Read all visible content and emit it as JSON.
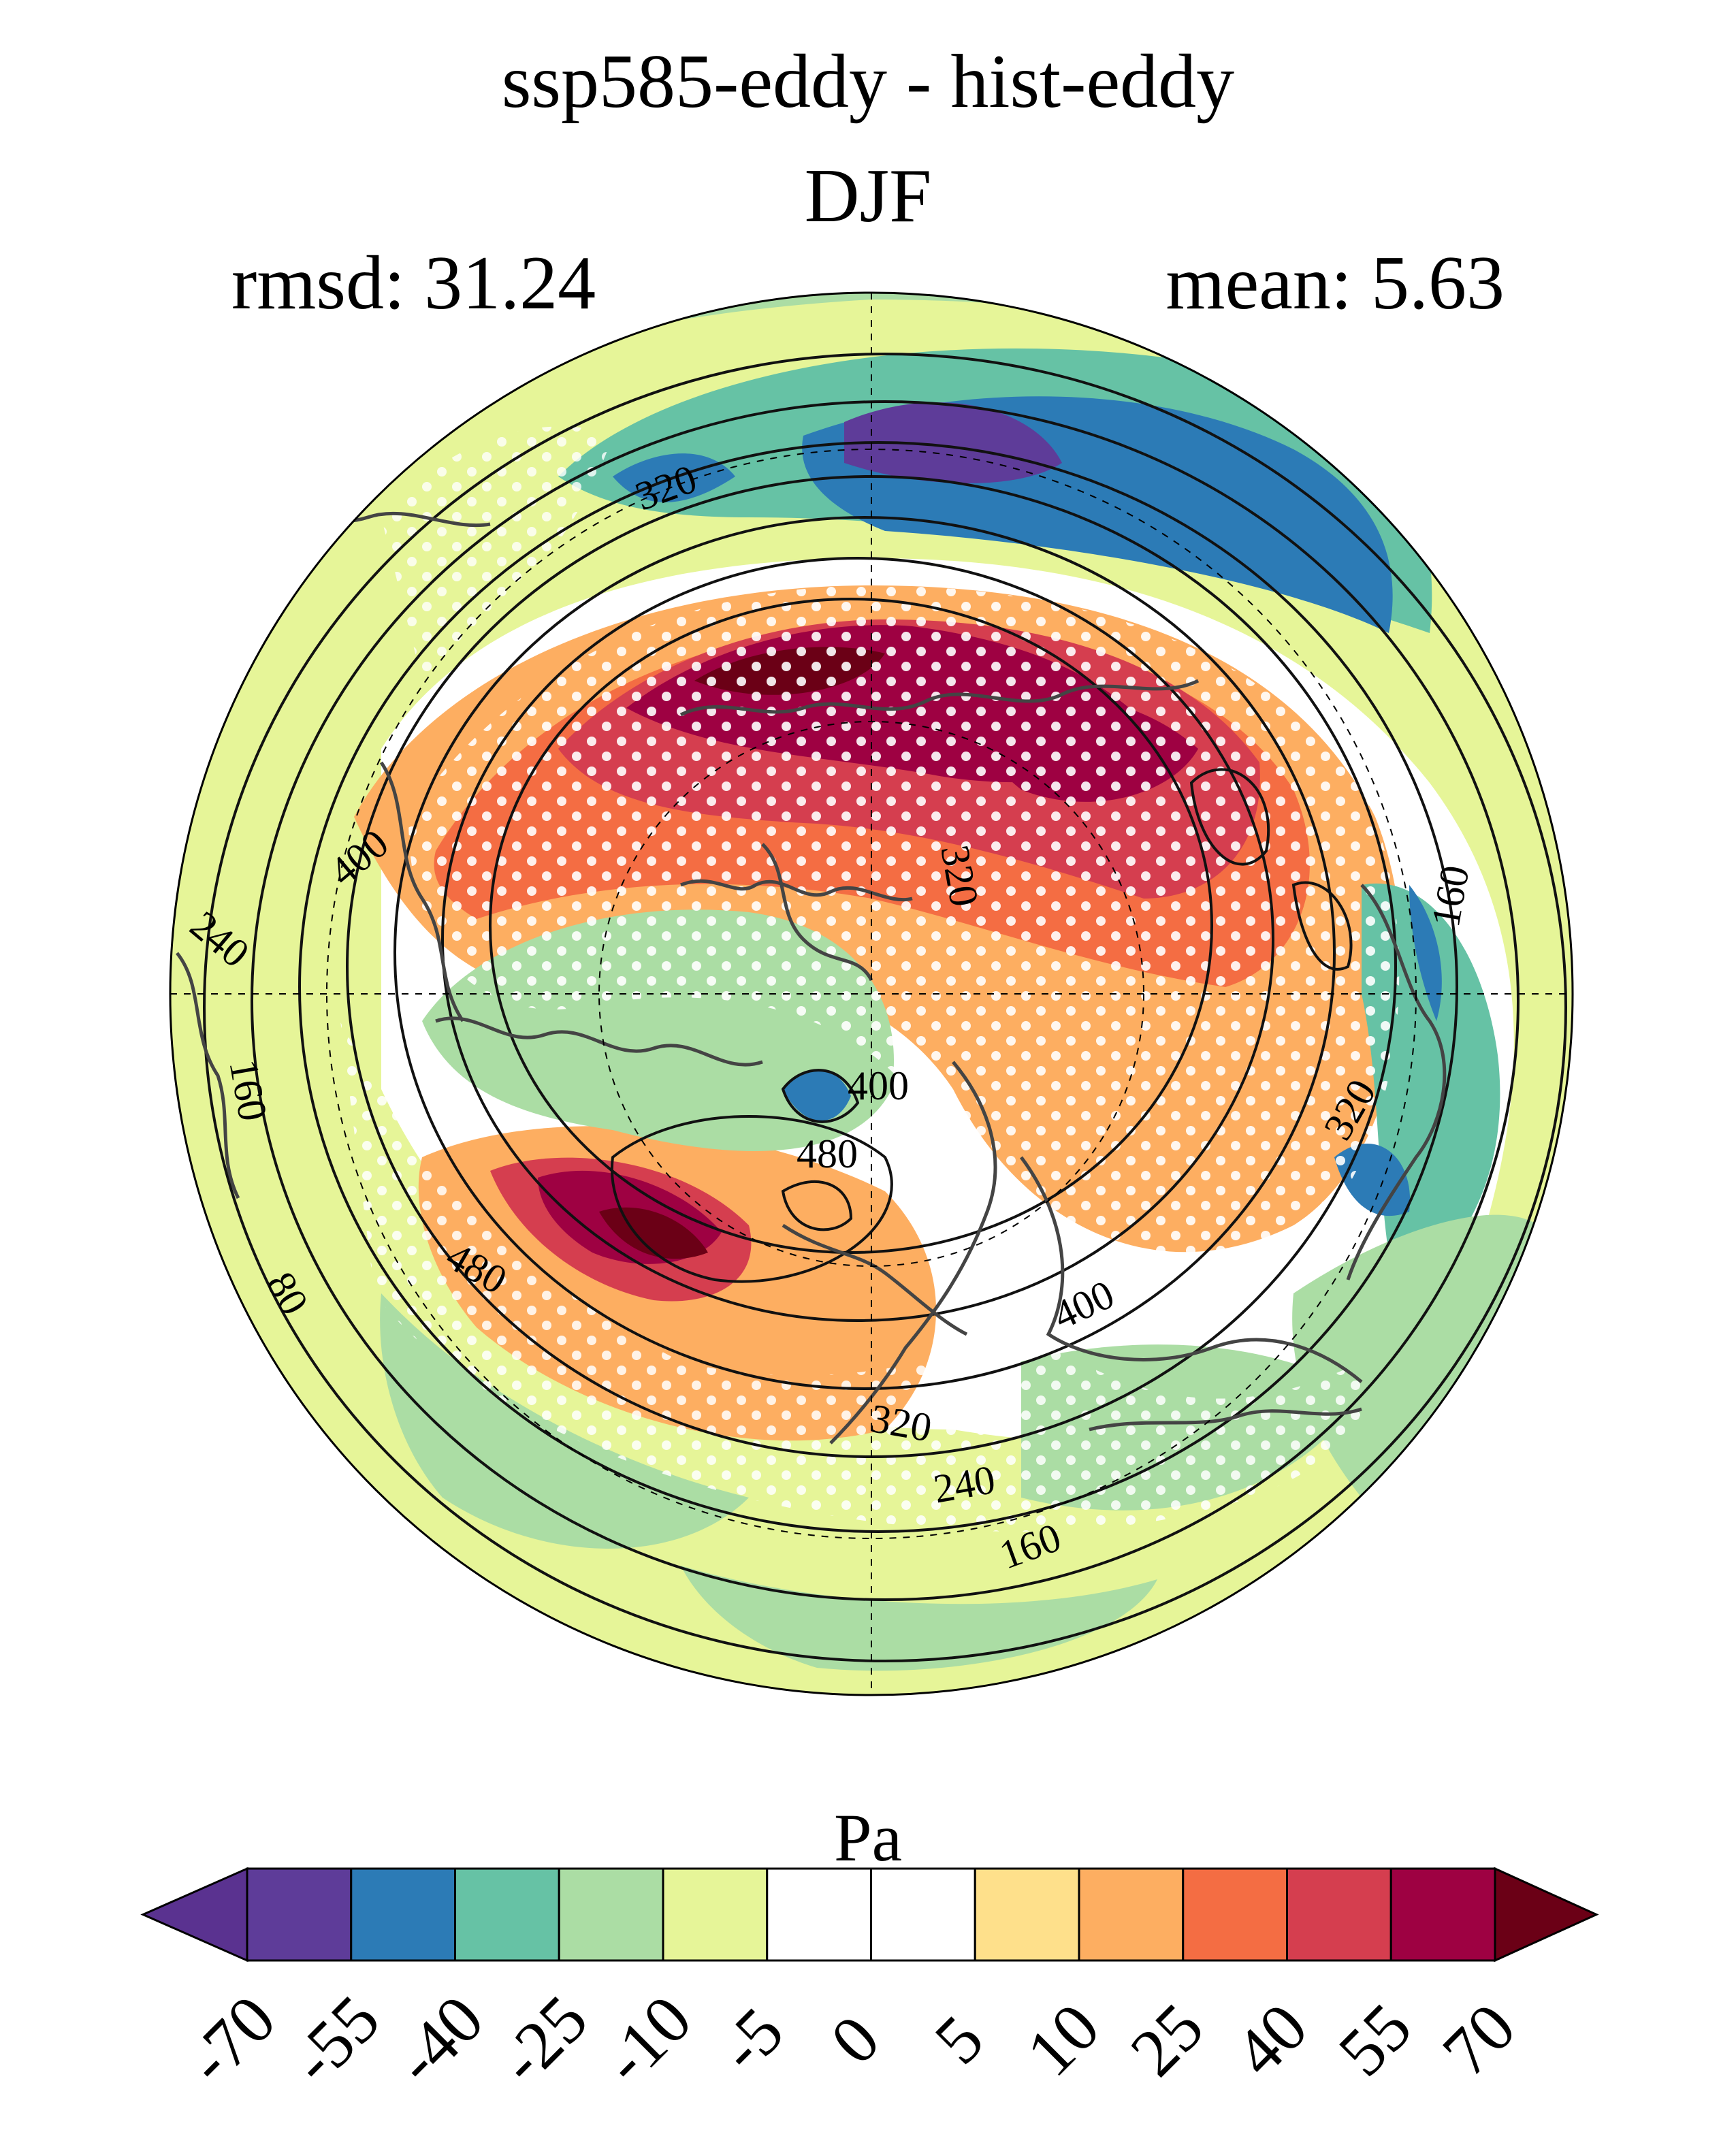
{
  "header": {
    "title": "ssp585-eddy - hist-eddy",
    "subtitle": "DJF",
    "rmsd": "rmsd: 31.24",
    "mean": "mean: 5.63"
  },
  "map": {
    "projection": "north-polar-stereographic",
    "contour_labels": [
      "320",
      "400",
      "240",
      "160",
      "80",
      "480",
      "400",
      "480",
      "320",
      "400",
      "320",
      "240",
      "160",
      "160",
      "320"
    ],
    "stippling": "white dots"
  },
  "colorbar": {
    "unit": "Pa",
    "ticks": [
      "-70",
      "-55",
      "-40",
      "-25",
      "-10",
      "-5",
      "0",
      "5",
      "10",
      "25",
      "40",
      "55",
      "70"
    ],
    "colors": [
      "#5e3c99",
      "#2c7bb6",
      "#66c2a5",
      "#abdda4",
      "#e6f598",
      "#ffffff",
      "#ffffff",
      "#fee08b",
      "#fdae61",
      "#f46d43",
      "#d53e4f",
      "#9e0142"
    ],
    "under_color": "#5a3290",
    "over_color": "#6b0016"
  }
}
